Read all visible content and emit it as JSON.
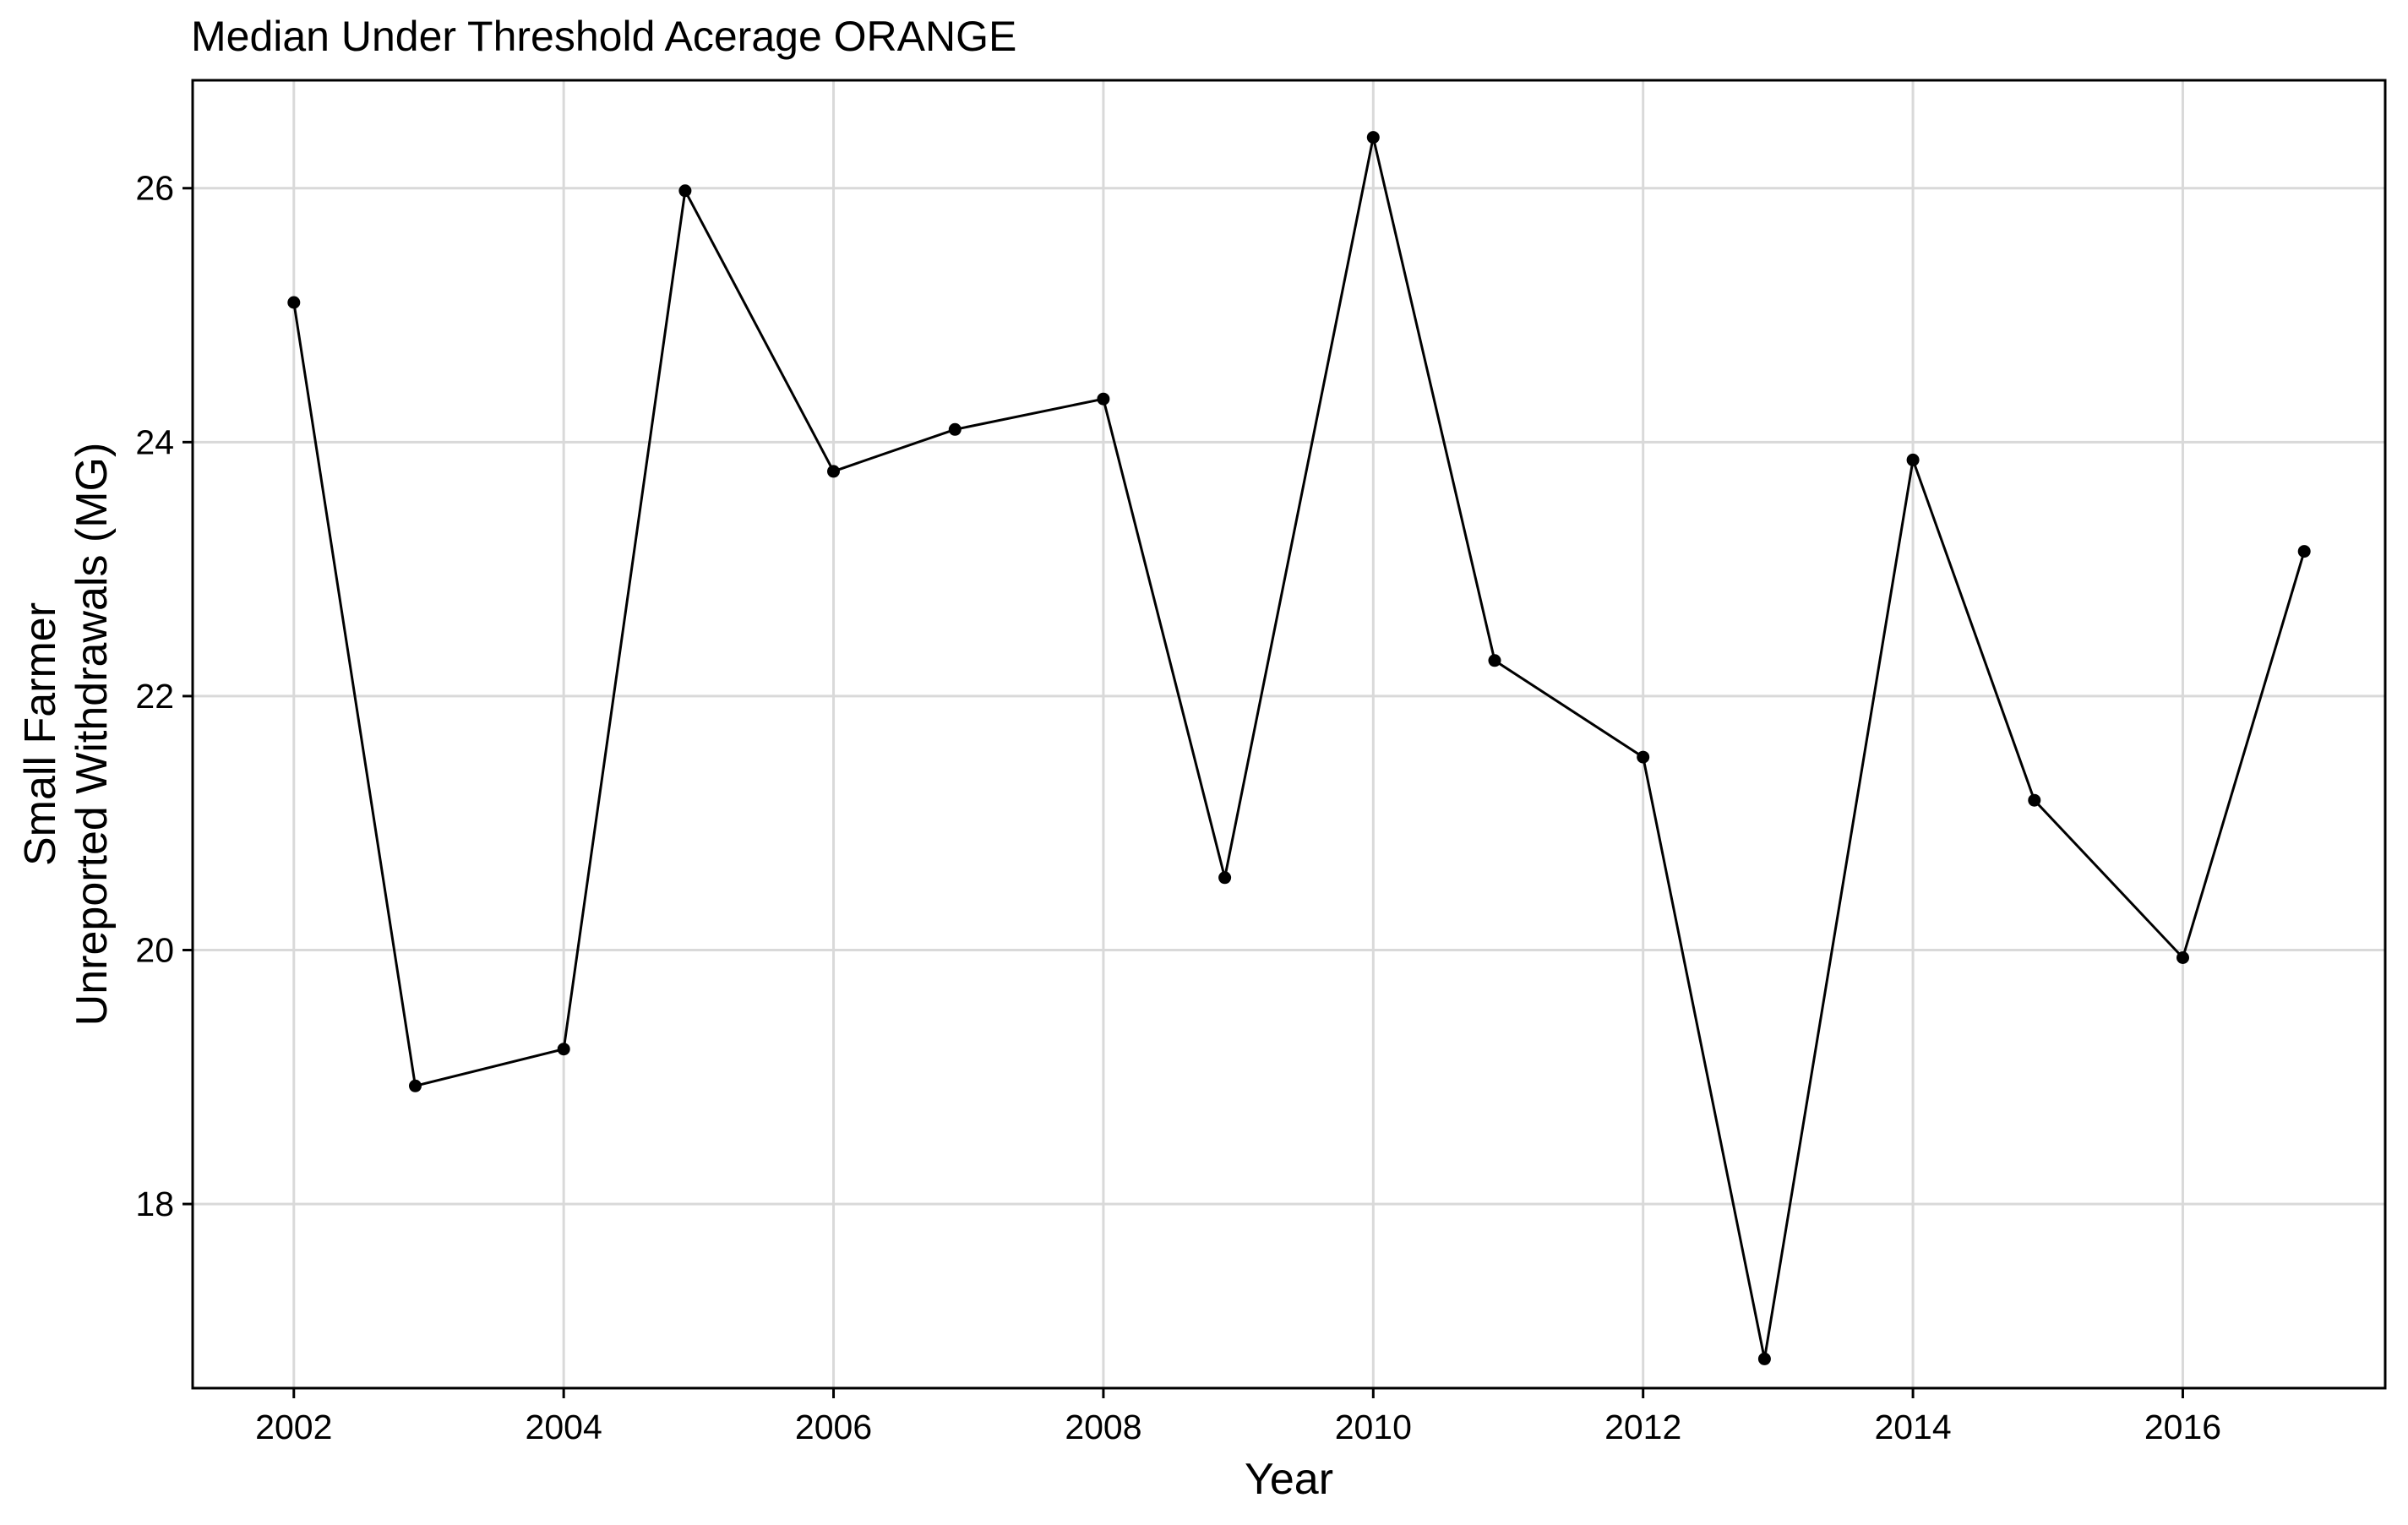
{
  "chart_data": {
    "type": "line",
    "title": "Median Under Threshold Acerage ORANGE",
    "xlabel": "Year",
    "ylabel_lines": [
      "Small Farmer",
      "Unreported Withdrawals (MG)"
    ],
    "xlim": [
      2001.25,
      2017.5
    ],
    "ylim": [
      16.55,
      26.85
    ],
    "x_ticks": [
      2002,
      2004,
      2006,
      2008,
      2010,
      2012,
      2014,
      2016
    ],
    "x_tick_labels": [
      "2002",
      "2004",
      "2006",
      "2008",
      "2010",
      "2012",
      "2014",
      "2016"
    ],
    "y_ticks": [
      18,
      20,
      22,
      24,
      26
    ],
    "y_tick_labels": [
      "18",
      "20",
      "22",
      "24",
      "26"
    ],
    "grid": true,
    "legend": "none",
    "colors": {
      "line": "#000000",
      "points": "#000000",
      "grid": "#d9d9d9",
      "background": "#ffffff"
    },
    "series": [
      {
        "x": [
          2002.0,
          2002.9,
          2004.0,
          2004.9,
          2006.0,
          2006.9,
          2008.0,
          2008.9,
          2010.0,
          2010.9,
          2012.0,
          2012.9,
          2014.0,
          2014.9,
          2016.0,
          2016.9
        ],
        "values": [
          25.1,
          18.93,
          19.22,
          25.98,
          23.77,
          24.1,
          24.34,
          20.57,
          26.4,
          22.28,
          21.52,
          16.78,
          23.86,
          21.18,
          19.94,
          23.14
        ]
      }
    ]
  }
}
